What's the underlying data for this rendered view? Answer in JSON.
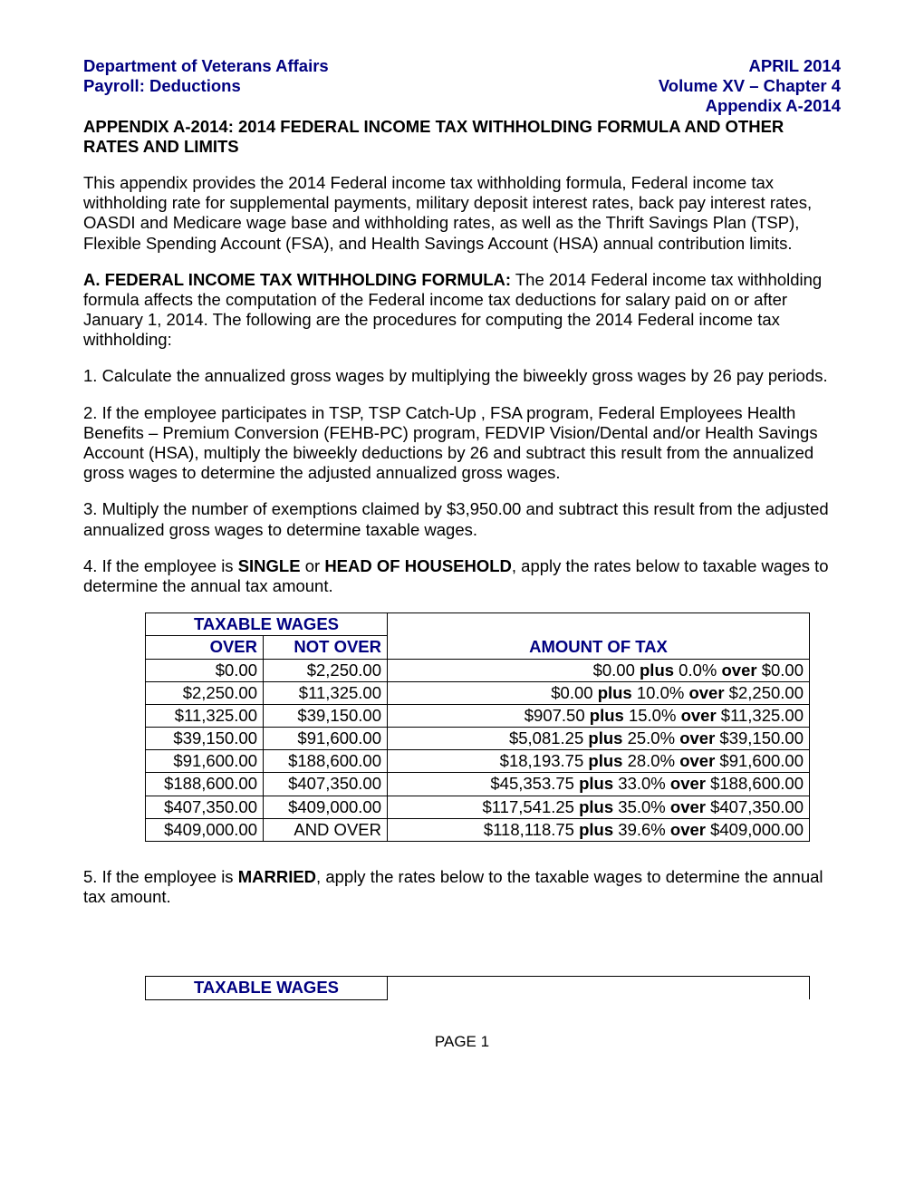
{
  "header": {
    "left_line1": "Department of Veterans Affairs",
    "left_line2": "Payroll:  Deductions",
    "right_line1": "APRIL 2014",
    "right_line2": "Volume XV – Chapter 4",
    "right_line3": "Appendix A-2014"
  },
  "appendix_title": "APPENDIX A-2014:  2014 FEDERAL INCOME TAX WITHHOLDING FORMULA AND OTHER RATES AND LIMITS",
  "intro_para": "This appendix provides the 2014 Federal income tax withholding formula, Federal income tax withholding rate for supplemental payments, military deposit interest rates, back pay interest rates, OASDI and Medicare wage base and withholding rates, as well as the Thrift Savings Plan (TSP), Flexible Spending Account (FSA), and Health Savings Account (HSA) annual contribution limits.",
  "section_a": {
    "label": "A.  FEDERAL INCOME TAX WITHHOLDING FORMULA:",
    "text": "  The 2014 Federal income tax withholding formula affects the computation of the Federal income tax deductions for salary paid on or after January 1, 2014.  The following are the procedures for computing the 2014 Federal income tax withholding:"
  },
  "step1": "1.  Calculate the annualized gross wages by multiplying the biweekly gross wages by 26 pay periods.",
  "step2": "2.  If the employee participates in TSP, TSP Catch-Up , FSA program, Federal Employees Health Benefits – Premium Conversion (FEHB-PC) program, FEDVIP Vision/Dental and/or Health Savings Account (HSA), multiply the biweekly deductions by 26 and subtract this result from the annualized gross wages to determine the adjusted annualized gross wages.",
  "step3": "3.  Multiply the number of exemptions claimed by $3,950.00 and subtract this result from the adjusted annualized gross wages to determine taxable wages.",
  "step4": {
    "pre": "4.  If the employee is ",
    "bold1": "SINGLE",
    "mid": " or ",
    "bold2": "HEAD OF HOUSEHOLD",
    "post": ", apply the rates below to taxable wages to determine the annual tax amount."
  },
  "table1": {
    "header_span": "TAXABLE WAGES",
    "col1": "OVER",
    "col2": "NOT OVER",
    "col3": "AMOUNT OF TAX",
    "rows": [
      {
        "over": "$0.00",
        "notover": "$2,250.00",
        "base": "$0.00",
        "rate": "0.0%",
        "threshold": "$0.00"
      },
      {
        "over": "$2,250.00",
        "notover": "$11,325.00",
        "base": "$0.00",
        "rate": "10.0%",
        "threshold": "$2,250.00"
      },
      {
        "over": "$11,325.00",
        "notover": "$39,150.00",
        "base": "$907.50",
        "rate": "15.0%",
        "threshold": "$11,325.00"
      },
      {
        "over": "$39,150.00",
        "notover": "$91,600.00",
        "base": "$5,081.25",
        "rate": "25.0%",
        "threshold": "$39,150.00"
      },
      {
        "over": "$91,600.00",
        "notover": "$188,600.00",
        "base": "$18,193.75",
        "rate": "28.0%",
        "threshold": "$91,600.00"
      },
      {
        "over": "$188,600.00",
        "notover": "$407,350.00",
        "base": "$45,353.75",
        "rate": "33.0%",
        "threshold": "$188,600.00"
      },
      {
        "over": "$407,350.00",
        "notover": "$409,000.00",
        "base": "$117,541.25",
        "rate": "35.0%",
        "threshold": "$407,350.00"
      },
      {
        "over": "$409,000.00",
        "notover": "AND OVER",
        "base": "$118,118.75",
        "rate": "39.6%",
        "threshold": "$409,000.00"
      }
    ],
    "plus_word": "plus",
    "over_word": "over"
  },
  "step5": {
    "pre": "5.  If the employee is ",
    "bold1": "MARRIED",
    "post": ", apply the rates below to the taxable wages to determine the annual tax amount."
  },
  "table2": {
    "header_span": "TAXABLE WAGES"
  },
  "page_label": "PAGE",
  "page_num": "1"
}
